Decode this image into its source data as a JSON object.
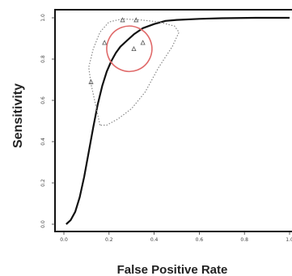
{
  "chart_data": {
    "type": "line",
    "title": "",
    "xlabel": "False Positive Rate",
    "ylabel": "Sensitivity",
    "xlim": [
      0,
      1
    ],
    "ylim": [
      0,
      1
    ],
    "x_ticks": [
      "0.0",
      "0.2",
      "0.4",
      "0.6",
      "0.8",
      "1.0"
    ],
    "y_ticks": [
      "0.0",
      "0.2",
      "0.4",
      "0.6",
      "0.8",
      "1.0"
    ],
    "grid": false,
    "legend": "none",
    "series": [
      {
        "role": "summary-curve",
        "style": "solid",
        "color": "#111111",
        "x": [
          0.01,
          0.03,
          0.05,
          0.07,
          0.09,
          0.11,
          0.13,
          0.15,
          0.17,
          0.19,
          0.21,
          0.23,
          0.25,
          0.28,
          0.31,
          0.35,
          0.4,
          0.45,
          0.5,
          0.6,
          0.7,
          0.85,
          1.0
        ],
        "y": [
          0.0,
          0.02,
          0.06,
          0.13,
          0.23,
          0.35,
          0.47,
          0.58,
          0.67,
          0.74,
          0.79,
          0.83,
          0.86,
          0.89,
          0.92,
          0.95,
          0.97,
          0.985,
          0.99,
          0.995,
          0.998,
          1.0,
          1.0
        ]
      },
      {
        "role": "prediction-region",
        "style": "dotted",
        "color": "#888888",
        "x": [
          0.16,
          0.14,
          0.12,
          0.11,
          0.13,
          0.16,
          0.2,
          0.26,
          0.34,
          0.42,
          0.49,
          0.51,
          0.48,
          0.42,
          0.36,
          0.3,
          0.24,
          0.19,
          0.16
        ],
        "y": [
          0.48,
          0.58,
          0.68,
          0.76,
          0.85,
          0.93,
          0.98,
          0.995,
          0.99,
          0.98,
          0.96,
          0.93,
          0.86,
          0.76,
          0.64,
          0.56,
          0.51,
          0.48,
          0.48
        ]
      }
    ],
    "confidence_region": {
      "style": "solid",
      "color": "#e06a6a",
      "center": [
        0.29,
        0.85
      ],
      "semi_axes": [
        0.1,
        0.11
      ]
    },
    "studies": {
      "marker": "triangle",
      "color": "#555555",
      "x": [
        0.12,
        0.18,
        0.26,
        0.31,
        0.35,
        0.32
      ],
      "y": [
        0.69,
        0.88,
        0.99,
        0.85,
        0.88,
        0.99
      ]
    }
  }
}
